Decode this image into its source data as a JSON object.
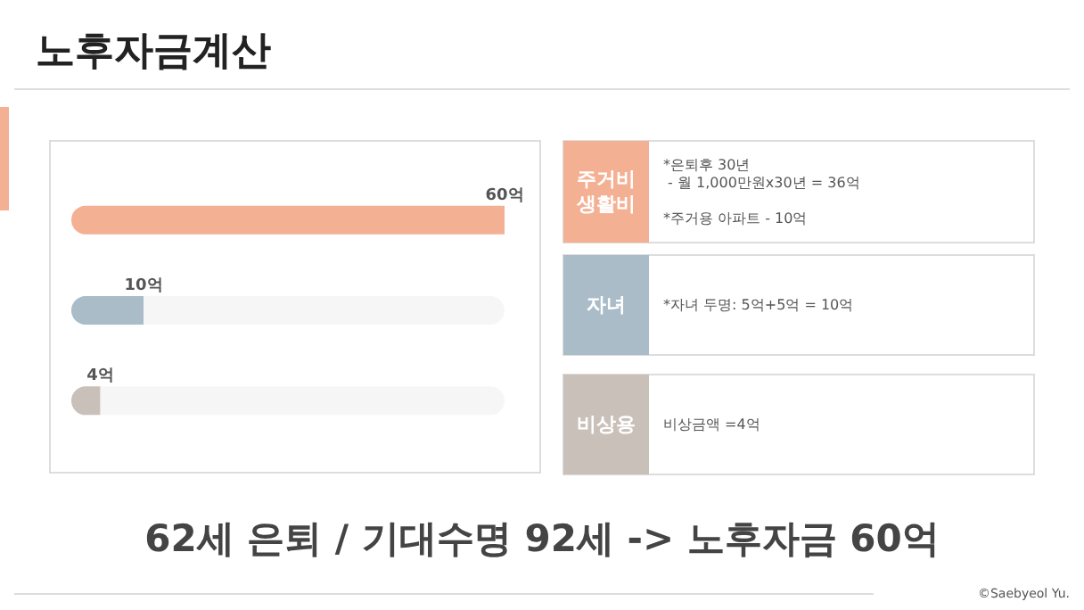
{
  "chart_data": {
    "type": "bar",
    "title": "노후자금계산",
    "orientation": "horizontal",
    "categories": [
      null,
      null,
      null
    ],
    "values": [
      60,
      10,
      4
    ],
    "colors": [
      "#f4b093",
      "#a9bcc8",
      "#c9c0ba"
    ],
    "value_labels": [
      "60억",
      "10억",
      "4억"
    ],
    "tick_labels": false,
    "annotations": [
      "주거비\n생활비",
      "*은퇴후 30년\n - 월 1,000만원x30년 = 36억\n\n*주거용 아파트 - 10억",
      "자녀",
      "*자녀 두명: 5억+5억 = 10억",
      "비상용",
      "비상금액 =4억",
      "62세 은퇴 / 기대수명 92세 -> 노후자금 60억",
      "©Saebyeol Yu."
    ]
  }
}
